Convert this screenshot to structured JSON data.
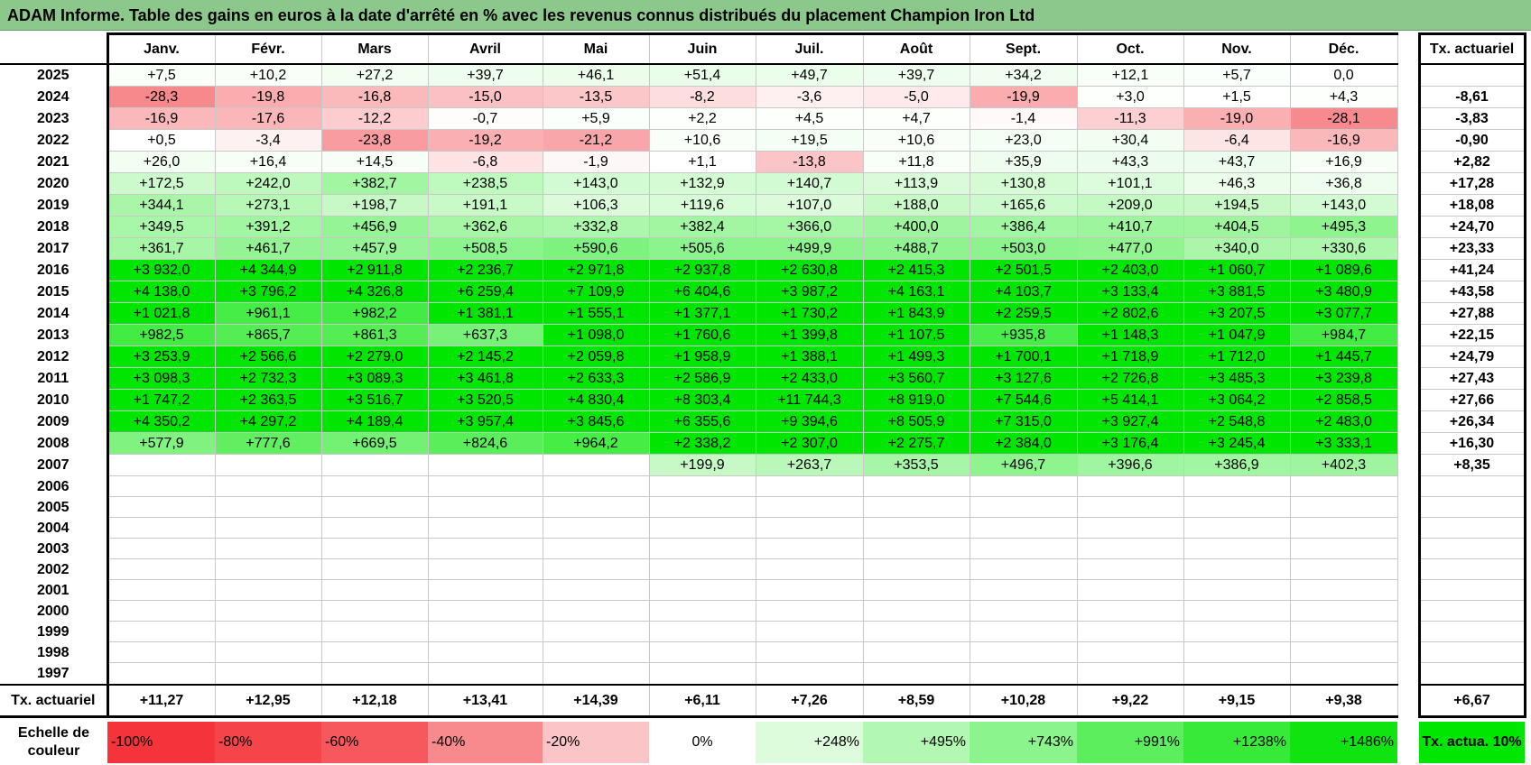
{
  "title": "ADAM Informe. Table des gains en euros à la date d'arrêté en % avec les revenus connus distribués du placement Champion Iron Ltd",
  "months": [
    "Janv.",
    "Févr.",
    "Mars",
    "Avril",
    "Mai",
    "Juin",
    "Juil.",
    "Août",
    "Sept.",
    "Oct.",
    "Nov.",
    "Déc."
  ],
  "annual_header": "Tx. actuariel",
  "rows": [
    {
      "year": "2025",
      "cells": [
        "+7,5",
        "+10,2",
        "+27,2",
        "+39,7",
        "+46,1",
        "+51,4",
        "+49,7",
        "+39,7",
        "+34,2",
        "+12,1",
        "+5,7",
        "0,0"
      ],
      "annual": ""
    },
    {
      "year": "2024",
      "cells": [
        "-28,3",
        "-19,8",
        "-16,8",
        "-15,0",
        "-13,5",
        "-8,2",
        "-3,6",
        "-5,0",
        "-19,9",
        "+3,0",
        "+1,5",
        "+4,3"
      ],
      "annual": "-8,61"
    },
    {
      "year": "2023",
      "cells": [
        "-16,9",
        "-17,6",
        "-12,2",
        "-0,7",
        "+5,9",
        "+2,2",
        "+4,5",
        "+4,7",
        "-1,4",
        "-11,3",
        "-19,0",
        "-28,1"
      ],
      "annual": "-3,83"
    },
    {
      "year": "2022",
      "cells": [
        "+0,5",
        "-3,4",
        "-23,8",
        "-19,2",
        "-21,2",
        "+10,6",
        "+19,5",
        "+10,6",
        "+23,0",
        "+30,4",
        "-6,4",
        "-16,9"
      ],
      "annual": "-0,90"
    },
    {
      "year": "2021",
      "cells": [
        "+26,0",
        "+16,4",
        "+14,5",
        "-6,8",
        "-1,9",
        "+1,1",
        "-13,8",
        "+11,8",
        "+35,9",
        "+43,3",
        "+43,7",
        "+16,9"
      ],
      "annual": "+2,82"
    },
    {
      "year": "2020",
      "cells": [
        "+172,5",
        "+242,0",
        "+382,7",
        "+238,5",
        "+143,0",
        "+132,9",
        "+140,7",
        "+113,9",
        "+130,8",
        "+101,1",
        "+46,3",
        "+36,8"
      ],
      "annual": "+17,28"
    },
    {
      "year": "2019",
      "cells": [
        "+344,1",
        "+273,1",
        "+198,7",
        "+191,1",
        "+106,3",
        "+119,6",
        "+107,0",
        "+188,0",
        "+165,6",
        "+209,0",
        "+194,5",
        "+143,0"
      ],
      "annual": "+18,08"
    },
    {
      "year": "2018",
      "cells": [
        "+349,5",
        "+391,2",
        "+456,9",
        "+362,6",
        "+332,8",
        "+382,4",
        "+366,0",
        "+400,0",
        "+386,4",
        "+410,7",
        "+404,5",
        "+495,3"
      ],
      "annual": "+24,70"
    },
    {
      "year": "2017",
      "cells": [
        "+361,7",
        "+461,7",
        "+457,9",
        "+508,5",
        "+590,6",
        "+505,6",
        "+499,9",
        "+488,7",
        "+503,0",
        "+477,0",
        "+340,0",
        "+330,6"
      ],
      "annual": "+23,33"
    },
    {
      "year": "2016",
      "cells": [
        "+3 932,0",
        "+4 344,9",
        "+2 911,8",
        "+2 236,7",
        "+2 971,8",
        "+2 937,8",
        "+2 630,8",
        "+2 415,3",
        "+2 501,5",
        "+2 403,0",
        "+1 060,7",
        "+1 089,6"
      ],
      "annual": "+41,24"
    },
    {
      "year": "2015",
      "cells": [
        "+4 138,0",
        "+3 796,2",
        "+4 326,8",
        "+6 259,4",
        "+7 109,9",
        "+6 404,6",
        "+3 987,2",
        "+4 163,1",
        "+4 103,7",
        "+3 133,4",
        "+3 881,5",
        "+3 480,9"
      ],
      "annual": "+43,58"
    },
    {
      "year": "2014",
      "cells": [
        "+1 021,8",
        "+961,1",
        "+982,2",
        "+1 381,1",
        "+1 555,1",
        "+1 377,1",
        "+1 730,2",
        "+1 843,9",
        "+2 259,5",
        "+2 802,6",
        "+3 207,5",
        "+3 077,7"
      ],
      "annual": "+27,88"
    },
    {
      "year": "2013",
      "cells": [
        "+982,5",
        "+865,7",
        "+861,3",
        "+637,3",
        "+1 098,0",
        "+1 760,6",
        "+1 399,8",
        "+1 107,5",
        "+935,8",
        "+1 148,3",
        "+1 047,9",
        "+984,7"
      ],
      "annual": "+22,15"
    },
    {
      "year": "2012",
      "cells": [
        "+3 253,9",
        "+2 566,6",
        "+2 279,0",
        "+2 145,2",
        "+2 059,8",
        "+1 958,9",
        "+1 388,1",
        "+1 499,3",
        "+1 700,1",
        "+1 718,9",
        "+1 712,0",
        "+1 445,7"
      ],
      "annual": "+24,79"
    },
    {
      "year": "2011",
      "cells": [
        "+3 098,3",
        "+2 732,3",
        "+3 089,3",
        "+3 461,8",
        "+2 633,3",
        "+2 586,9",
        "+2 433,0",
        "+3 560,7",
        "+3 127,6",
        "+2 726,8",
        "+3 485,3",
        "+3 239,8"
      ],
      "annual": "+27,43"
    },
    {
      "year": "2010",
      "cells": [
        "+1 747,2",
        "+2 363,5",
        "+3 516,7",
        "+3 520,5",
        "+4 830,4",
        "+8 303,4",
        "+11 744,3",
        "+8 919,0",
        "+7 544,6",
        "+5 414,1",
        "+3 064,2",
        "+2 858,5"
      ],
      "annual": "+27,66"
    },
    {
      "year": "2009",
      "cells": [
        "+4 350,2",
        "+4 297,2",
        "+4 189,4",
        "+3 957,4",
        "+3 845,6",
        "+6 355,6",
        "+9 394,6",
        "+8 505,9",
        "+7 315,0",
        "+3 927,4",
        "+2 548,8",
        "+2 483,0"
      ],
      "annual": "+26,34"
    },
    {
      "year": "2008",
      "cells": [
        "+577,9",
        "+777,6",
        "+669,5",
        "+824,6",
        "+964,2",
        "+2 338,2",
        "+2 307,0",
        "+2 275,7",
        "+2 384,0",
        "+3 176,4",
        "+3 245,4",
        "+3 333,1"
      ],
      "annual": "+16,30"
    },
    {
      "year": "2007",
      "cells": [
        "",
        "",
        "",
        "",
        "",
        "+199,9",
        "+263,7",
        "+353,5",
        "+496,7",
        "+396,6",
        "+386,9",
        "+402,3"
      ],
      "annual": "+8,35"
    },
    {
      "year": "2006",
      "cells": [
        "",
        "",
        "",
        "",
        "",
        "",
        "",
        "",
        "",
        "",
        "",
        ""
      ],
      "annual": ""
    },
    {
      "year": "2005",
      "cells": [
        "",
        "",
        "",
        "",
        "",
        "",
        "",
        "",
        "",
        "",
        "",
        ""
      ],
      "annual": ""
    },
    {
      "year": "2004",
      "cells": [
        "",
        "",
        "",
        "",
        "",
        "",
        "",
        "",
        "",
        "",
        "",
        ""
      ],
      "annual": ""
    },
    {
      "year": "2003",
      "cells": [
        "",
        "",
        "",
        "",
        "",
        "",
        "",
        "",
        "",
        "",
        "",
        ""
      ],
      "annual": ""
    },
    {
      "year": "2002",
      "cells": [
        "",
        "",
        "",
        "",
        "",
        "",
        "",
        "",
        "",
        "",
        "",
        ""
      ],
      "annual": ""
    },
    {
      "year": "2001",
      "cells": [
        "",
        "",
        "",
        "",
        "",
        "",
        "",
        "",
        "",
        "",
        "",
        ""
      ],
      "annual": ""
    },
    {
      "year": "2000",
      "cells": [
        "",
        "",
        "",
        "",
        "",
        "",
        "",
        "",
        "",
        "",
        "",
        ""
      ],
      "annual": ""
    },
    {
      "year": "1999",
      "cells": [
        "",
        "",
        "",
        "",
        "",
        "",
        "",
        "",
        "",
        "",
        "",
        ""
      ],
      "annual": ""
    },
    {
      "year": "1998",
      "cells": [
        "",
        "",
        "",
        "",
        "",
        "",
        "",
        "",
        "",
        "",
        "",
        ""
      ],
      "annual": ""
    },
    {
      "year": "1997",
      "cells": [
        "",
        "",
        "",
        "",
        "",
        "",
        "",
        "",
        "",
        "",
        "",
        ""
      ],
      "annual": ""
    }
  ],
  "summary": {
    "label": "Tx. actuariel",
    "cells": [
      "+11,27",
      "+12,95",
      "+12,18",
      "+13,41",
      "+14,39",
      "+6,11",
      "+7,26",
      "+8,59",
      "+10,28",
      "+9,22",
      "+9,15",
      "+9,38"
    ],
    "annual": "+6,67"
  },
  "scale": {
    "label": "Echelle de couleur",
    "steps": [
      {
        "text": "-100%",
        "color": "#f4343a"
      },
      {
        "text": "-80%",
        "color": "#f5444a"
      },
      {
        "text": "-60%",
        "color": "#f6585d"
      },
      {
        "text": "-40%",
        "color": "#f88a8e"
      },
      {
        "text": "-20%",
        "color": "#fbc5c7"
      },
      {
        "text": "0%",
        "color": "#ffffff"
      },
      {
        "text": "+248%",
        "color": "#dcfcdc"
      },
      {
        "text": "+495%",
        "color": "#b2f8b2"
      },
      {
        "text": "+743%",
        "color": "#8cf48c"
      },
      {
        "text": "+991%",
        "color": "#5cee5c"
      },
      {
        "text": "+1238%",
        "color": "#38ea38"
      },
      {
        "text": "+1486%",
        "color": "#10e410"
      }
    ],
    "legend_box": "Tx. actua. 10%"
  }
}
